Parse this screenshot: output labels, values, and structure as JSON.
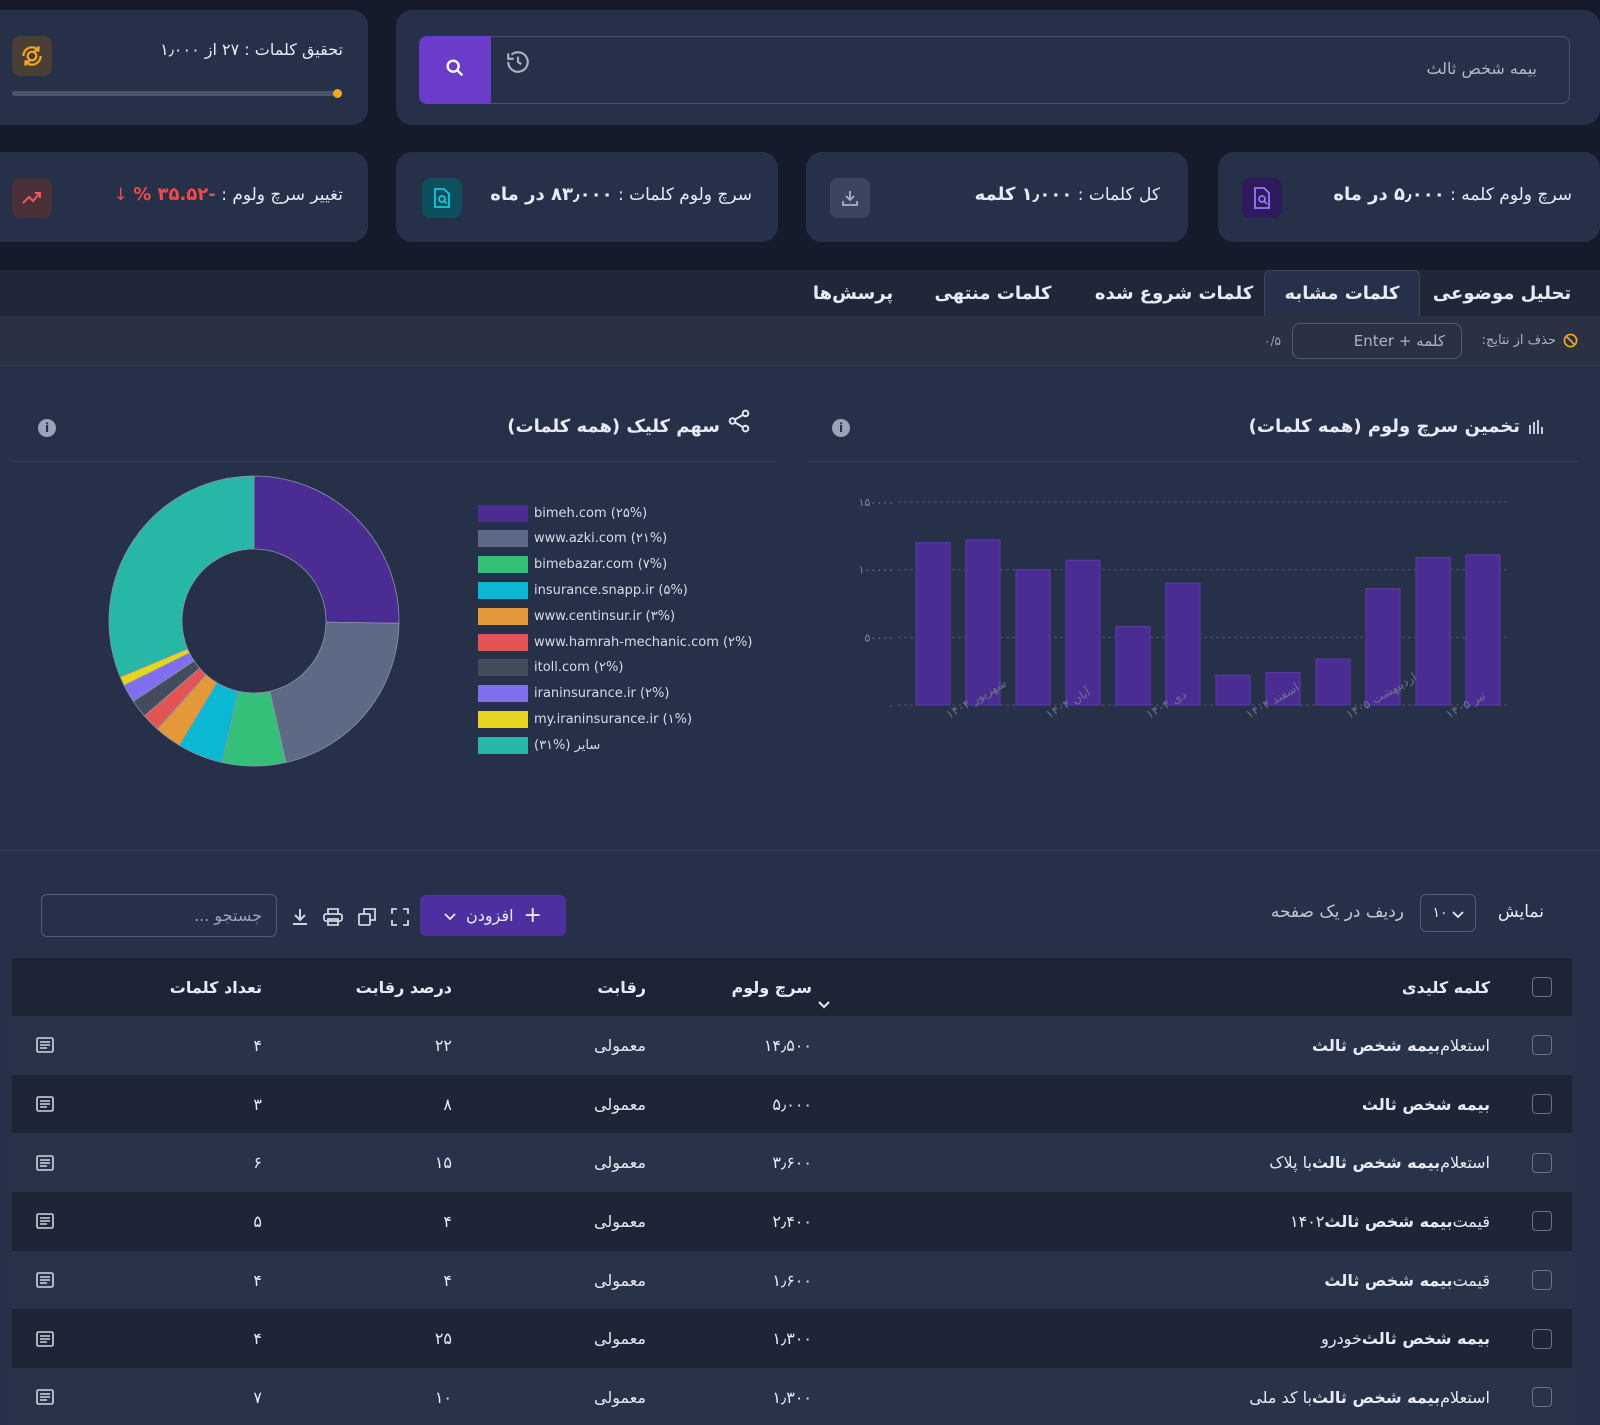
{
  "search": {
    "value": "بیمه شخص ثالث",
    "history_icon": "history-icon",
    "search_icon": "search-icon"
  },
  "research": {
    "label": "تحقیق کلمات : ۲۷ از ۱٫۰۰۰",
    "progress_fraction": 0.027
  },
  "stats": {
    "volume": {
      "label": "سرچ ولوم کلمه :",
      "value": "۵٫۰۰۰ در ماه"
    },
    "total": {
      "label": "کل کلمات :",
      "value": "۱٫۰۰۰ کلمه"
    },
    "total_volume": {
      "label": "سرچ ولوم کلمات :",
      "value": "۸۳٫۰۰۰ در ماه"
    },
    "change": {
      "label": "تغییر سرچ ولوم :",
      "value": "-۳۵.۵۲ %"
    }
  },
  "tabs": [
    "تحلیل موضوعی",
    "کلمات مشابه",
    "کلمات شروع شده",
    "کلمات منتهی",
    "پرسش‌ها"
  ],
  "filter": {
    "label": "حذف از نتایج:",
    "placeholder": "کلمه + Enter",
    "count": "۰/۵"
  },
  "bar_panel": {
    "title": "تخمین سرچ ولوم (همه کلمات)"
  },
  "pie_panel": {
    "title": "سهم کلیک (همه کلمات)"
  },
  "chart_data": [
    {
      "type": "bar",
      "title": "تخمین سرچ ولوم (همه کلمات)",
      "values": [
        120000,
        122000,
        100000,
        107000,
        58000,
        90000,
        22000,
        24000,
        34000,
        86000,
        109000,
        111000
      ],
      "x_tick_labels": [
        "شهریور ۱۴۰۴",
        "آبان ۱۴۰۴",
        "دی ۱۴۰۴",
        "اسفند ۱۴۰۴",
        "اردیبهشت ۱۴۰۵",
        "تیر ۱۴۰۵"
      ],
      "y_tick_labels": [
        "۰",
        "۵۰۰۰۰",
        "۱۰۰۰۰۰",
        "۱۵۰۰۰۰"
      ],
      "ylim": [
        0,
        150000
      ],
      "color": "#4b2c93",
      "grid": true
    },
    {
      "type": "pie",
      "title": "سهم کلیک (همه کلمات)",
      "legend_position": "right",
      "series": [
        {
          "name": "bimeh.com (۲۵%)",
          "value": 25,
          "color": "#4b2c93"
        },
        {
          "name": "www.azki.com (۲۱%)",
          "value": 21,
          "color": "#5d6a86"
        },
        {
          "name": "bimebazar.com (۷%)",
          "value": 7,
          "color": "#35c07a"
        },
        {
          "name": "insurance.snapp.ir (۵%)",
          "value": 5,
          "color": "#0bb8d4"
        },
        {
          "name": "www.centinsur.ir (۳%)",
          "value": 3,
          "color": "#e3993a"
        },
        {
          "name": "www.hamrah-mechanic.com (۲%)",
          "value": 2,
          "color": "#e35555"
        },
        {
          "name": "itoll.com (۲%)",
          "value": 2,
          "color": "#434c5d"
        },
        {
          "name": "iraninsurance.ir (۲%)",
          "value": 2,
          "color": "#7f6ef0"
        },
        {
          "name": "my.iraninsurance.ir (۱%)",
          "value": 1,
          "color": "#e5d51f"
        },
        {
          "name": "سایر (%۳۱)",
          "value": 31,
          "color": "#26b7a7"
        }
      ]
    }
  ],
  "table_controls": {
    "show_label": "نمایش",
    "page_size": "۱۰",
    "per_page_label": "ردیف در یک صفحه",
    "add_label": "افزودن",
    "search_placeholder": "جستجو ..."
  },
  "table": {
    "headers": [
      "کلمه کلیدی",
      "سرچ ولوم",
      "رقابت",
      "درصد رقابت",
      "تعداد کلمات"
    ],
    "rows": [
      {
        "pre": "استعلام ",
        "bold": "بیمه شخص ثالث",
        "post": "",
        "volume": "۱۴٫۵۰۰",
        "competition": "معمولی",
        "percent": "۲۲",
        "words": "۴"
      },
      {
        "pre": "",
        "bold": "بیمه شخص ثالث",
        "post": "",
        "volume": "۵٫۰۰۰",
        "competition": "معمولی",
        "percent": "۸",
        "words": "۳"
      },
      {
        "pre": "استعلام ",
        "bold": "بیمه شخص ثالث",
        "post": " با پلاک",
        "volume": "۳٫۶۰۰",
        "competition": "معمولی",
        "percent": "۱۵",
        "words": "۶"
      },
      {
        "pre": "قیمت ",
        "bold": "بیمه شخص ثالث",
        "post": " ۱۴۰۲",
        "volume": "۲٫۴۰۰",
        "competition": "معمولی",
        "percent": "۴",
        "words": "۵"
      },
      {
        "pre": "قیمت ",
        "bold": "بیمه شخص ثالث",
        "post": "",
        "volume": "۱٫۶۰۰",
        "competition": "معمولی",
        "percent": "۴",
        "words": "۴"
      },
      {
        "pre": "",
        "bold": "بیمه شخص ثالث",
        "post": " خودرو",
        "volume": "۱٫۳۰۰",
        "competition": "معمولی",
        "percent": "۲۵",
        "words": "۴"
      },
      {
        "pre": "استعلام ",
        "bold": "بیمه شخص ثالث",
        "post": " با کد ملی",
        "volume": "۱٫۳۰۰",
        "competition": "معمولی",
        "percent": "۱۰",
        "words": "۷"
      }
    ]
  },
  "colors": {
    "accent": "#6b3cc9",
    "orange": "#f5a623",
    "negative": "#ef4b4b"
  }
}
